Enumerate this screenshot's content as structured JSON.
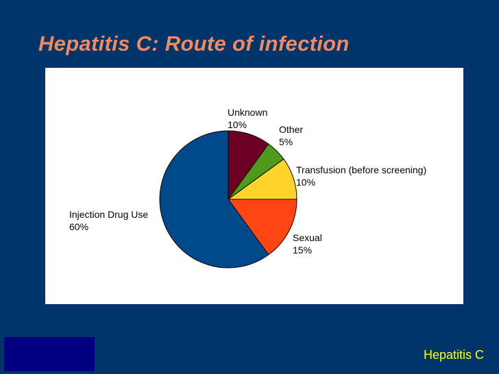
{
  "title": "Hepatitis C:  Route of infection",
  "footer": "Hepatitis C",
  "colors": {
    "background": "#00356b",
    "title": "#f4895f",
    "footer": "#ffff00",
    "corner_block": "#000080"
  },
  "chart_data": {
    "type": "pie",
    "title": "",
    "start_angle_deg": 0,
    "direction": "clockwise",
    "slices": [
      {
        "name": "Unknown",
        "value": 10,
        "label": "10%",
        "color": "#6b0022"
      },
      {
        "name": "Other",
        "value": 5,
        "label": "5%",
        "color": "#4e9a1a"
      },
      {
        "name": "Transfusion (before screening)",
        "value": 10,
        "label": "10%",
        "color": "#ffd42a"
      },
      {
        "name": "Sexual",
        "value": 15,
        "label": "15%",
        "color": "#ff4512"
      },
      {
        "name": "Injection Drug Use",
        "value": 60,
        "label": "60%",
        "color": "#004a8c"
      }
    ]
  }
}
